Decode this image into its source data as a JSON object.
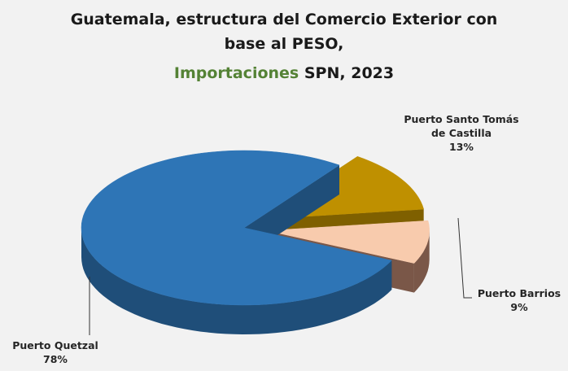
{
  "chart_data": {
    "type": "pie",
    "title_lines": [
      "Guatemala, estructura del Comercio Exterior con",
      "base al PESO,"
    ],
    "title_highlight": "Importaciones",
    "title_end": "SPN, 2023",
    "categories": [
      "Puerto Quetzal",
      "Puerto Santo Tomás de Castilla",
      "Puerto Barrios"
    ],
    "values": [
      78,
      13,
      9
    ],
    "value_labels": [
      "78%",
      "13%",
      "9%"
    ],
    "colors": [
      "#2e75b6",
      "#bf9000",
      "#f8cbad"
    ],
    "side_colors": [
      "#1f4e79",
      "#7f6000",
      "#7a5748"
    ]
  }
}
